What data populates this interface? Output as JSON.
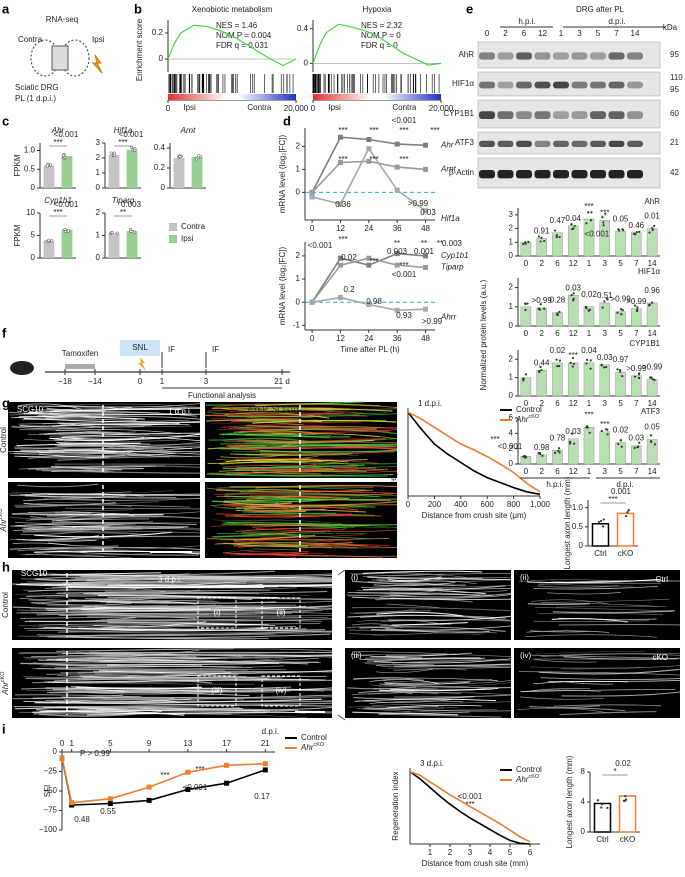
{
  "panel_labels": [
    "a",
    "b",
    "c",
    "d",
    "e",
    "f",
    "g",
    "h",
    "i"
  ],
  "a": {
    "title": "RNA-seq",
    "contra": "Contra",
    "ipsi": "Ipsi",
    "caption": [
      "Sciatic DRG",
      "PL (1 d.p.i.)"
    ]
  },
  "b": {
    "y_label": "Enrichment score"
  },
  "e": {
    "header": "DRG after PL",
    "hpi": "h.p.i.",
    "dpi": "d.p.i.",
    "lanes": [
      "0",
      "2",
      "6",
      "12",
      "1",
      "3",
      "5",
      "7",
      "14"
    ],
    "kda": "kDa",
    "rows": [
      {
        "name": "AhR",
        "mw": [
          "95"
        ]
      },
      {
        "name": "HIF1α",
        "mw": [
          "110",
          "95"
        ]
      },
      {
        "name": "CYP1B1",
        "mw": [
          "60"
        ]
      },
      {
        "name": "ATF3",
        "mw": [
          "21"
        ]
      },
      {
        "name": "β-Actin",
        "mw": [
          "42"
        ]
      }
    ],
    "y_label": "Normalized protein levels (a.u.)",
    "hpi_bottom": "h.p.i.",
    "dpi_bottom": "d.p.i."
  },
  "f": {
    "drug": "Tamoxifen",
    "surgery": "SNL",
    "if": [
      "IF",
      "IF"
    ],
    "ticks": [
      "−18",
      "−14",
      "0",
      "1",
      "3",
      "21 d"
    ],
    "functional": "Functional analysis"
  },
  "g": {
    "stain": "SCG10",
    "time": "1 d.p.i.",
    "rows": [
      "Control",
      {
        "gene": "Ahr",
        "sup": "cKO"
      }
    ],
    "merge": [
      "eYFP",
      "SCG10"
    ]
  },
  "h": {
    "stain": "SCG10",
    "time": "3 d.p.i.",
    "rows": [
      "Control",
      {
        "gene": "Ahr",
        "sup": "cKO"
      }
    ],
    "boxes": [
      "(i)",
      "(ii)",
      "(iii)",
      "(iv)"
    ],
    "zoom_labels": [
      "(i)",
      "(ii)",
      "(iii)",
      "(iv)"
    ],
    "zoom_tags": [
      "Ctrl",
      "cKO"
    ]
  },
  "chart_data": [
    {
      "type": "line",
      "title": "Xenobiotic metabolism",
      "stats": [
        "NES = 1.46",
        "NOM P = 0.004",
        "FDR q = 0.031"
      ],
      "x": [
        0,
        1000,
        2000,
        4000,
        6000,
        8000,
        10000,
        12000,
        14000,
        16000,
        18000,
        20000
      ],
      "xlim": [
        0,
        20000
      ],
      "xticks": [
        0,
        {
          "value": 20000,
          "label": "20,000"
        }
      ],
      "ylim": [
        -0.1,
        0.3
      ],
      "yticks": [
        0,
        0.2
      ],
      "barcode_labels": [
        "Ipsi",
        "Contra"
      ],
      "series": [
        {
          "color": "#3ddc3d",
          "values": [
            0,
            0.12,
            0.2,
            0.26,
            0.25,
            0.22,
            0.18,
            0.12,
            0.06,
            0,
            -0.05,
            0
          ]
        }
      ]
    },
    {
      "type": "line",
      "title": "Hypoxia",
      "stats": [
        "NES = 2.32",
        "NOM P = 0",
        "FDR q = 0"
      ],
      "x": [
        0,
        1000,
        2000,
        4000,
        6000,
        8000,
        10000,
        12000,
        14000,
        16000,
        18000,
        20000
      ],
      "xlim": [
        0,
        20000
      ],
      "xticks": [
        0,
        {
          "value": 20000,
          "label": "20,000"
        }
      ],
      "ylim": [
        -0.1,
        0.5
      ],
      "yticks": [
        0,
        0.4
      ],
      "barcode_labels": [
        "Ipsi",
        "Contra"
      ],
      "series": [
        {
          "color": "#3ddc3d",
          "values": [
            0,
            0.2,
            0.35,
            0.45,
            0.42,
            0.38,
            0.32,
            0.22,
            0.12,
            0.05,
            -0.02,
            0
          ]
        }
      ]
    },
    {
      "type": "bar",
      "title": "Ahr",
      "y_label": "FPKM",
      "ylim": [
        0,
        1.2
      ],
      "yticks": [
        0,
        0.5,
        {
          "value": 1,
          "label": "1.0"
        }
      ],
      "annotations": [
        "<0.001",
        "***"
      ],
      "series": [
        {
          "color": "#c4c4c4",
          "values": [
            0.6
          ]
        },
        {
          "color": "#98cf92",
          "values": [
            0.85
          ]
        }
      ]
    },
    {
      "type": "bar",
      "title": "Hif1a",
      "ylim": [
        0,
        3
      ],
      "yticks": [
        0,
        1,
        2,
        3
      ],
      "annotations": [
        "<0.001",
        "***"
      ],
      "series": [
        {
          "color": "#c4c4c4",
          "values": [
            2.2
          ]
        },
        {
          "color": "#98cf92",
          "values": [
            2.55
          ]
        }
      ]
    },
    {
      "type": "bar",
      "title": "Arnt",
      "ylim": [
        0,
        0.45
      ],
      "yticks": [
        0,
        0.2,
        0.4
      ],
      "series": [
        {
          "color": "#c4c4c4",
          "values": [
            0.3
          ]
        },
        {
          "color": "#98cf92",
          "values": [
            0.31
          ]
        }
      ]
    },
    {
      "type": "bar",
      "title": "Cyp1b1",
      "y_label": "FPKM",
      "ylim": [
        0,
        10
      ],
      "yticks": [
        0,
        5,
        10
      ],
      "annotations": [
        "<0.001",
        "***"
      ],
      "series": [
        {
          "color": "#c4c4c4",
          "values": [
            3.7
          ]
        },
        {
          "color": "#98cf92",
          "values": [
            6.3
          ]
        }
      ]
    },
    {
      "type": "bar",
      "title": "Tiparp",
      "ylim": [
        0,
        2
      ],
      "yticks": [
        0,
        1,
        2
      ],
      "annotations": [
        "0.003",
        "**"
      ],
      "series": [
        {
          "name": "Contra",
          "color": "#c4c4c4",
          "values": [
            1.1
          ]
        },
        {
          "name": "Ipsi",
          "color": "#98cf92",
          "values": [
            1.2
          ]
        }
      ]
    },
    {
      "type": "line",
      "y_label": "mRNA level (log₂[FC])",
      "x": [
        0,
        12,
        24,
        36,
        48
      ],
      "xlim": [
        -3,
        52
      ],
      "xticks": [
        0,
        12,
        24,
        36,
        48
      ],
      "ylim": [
        -1.2,
        2.8
      ],
      "yticks": [
        0,
        1,
        2
      ],
      "reference_line": 0,
      "annotations": [
        "***",
        "***",
        "<0.001",
        "***",
        "***",
        "***",
        "***",
        "***",
        "0.36",
        ">0.99",
        "0.03"
      ],
      "series": [
        {
          "name": "Ahr",
          "color": "#7f7f7f",
          "values": [
            0,
            2.4,
            2.3,
            2.1,
            2.05
          ]
        },
        {
          "name": "Arnt",
          "color": "#9a9a9a",
          "values": [
            0,
            1.3,
            1.35,
            1.1,
            1
          ]
        },
        {
          "name": "Hif1a",
          "color": "#a8a8a8",
          "values": [
            -0.2,
            -0.5,
            1.9,
            0.1,
            -0.8
          ]
        }
      ]
    },
    {
      "type": "line",
      "y_label": "mRNA level (log₂[FC])",
      "x_label": "Time after PL (h)",
      "x": [
        0,
        12,
        24,
        36,
        48
      ],
      "xlim": [
        -3,
        52
      ],
      "xticks": [
        0,
        12,
        24,
        36,
        48
      ],
      "ylim": [
        -1.2,
        2.6
      ],
      "yticks": [
        -1,
        0,
        1,
        2
      ],
      "reference_line": 0,
      "annotations": [
        "<0.001",
        "***",
        "0.02",
        "0.2",
        "***",
        "0.98",
        "**",
        "0.003",
        "***",
        "<0.001",
        "**",
        "0.001",
        "0.93",
        "**",
        "0.003",
        ">0.99"
      ],
      "series": [
        {
          "name": "Cyp1b1",
          "color": "#7f7f7f",
          "values": [
            0,
            1.9,
            1.6,
            2.1,
            2
          ]
        },
        {
          "name": "Tiparp",
          "color": "#9a9a9a",
          "values": [
            0,
            1.6,
            1.9,
            1.6,
            1.5
          ]
        },
        {
          "name": "Ahrr",
          "color": "#a8a8a8",
          "values": [
            0,
            0.2,
            -0.1,
            -0.35,
            -0.3
          ]
        }
      ]
    },
    {
      "type": "bar",
      "title": "AhR",
      "categories": [
        "0",
        "2",
        "6",
        "12",
        "1",
        "3",
        "5",
        "7",
        "14"
      ],
      "ylim": [
        0,
        3.5
      ],
      "yticks": [
        0,
        1,
        2,
        3
      ],
      "annotations": [
        "0.91",
        "0.47",
        "0.04",
        "***",
        "***",
        "0.05",
        "0.46",
        "0.01"
      ],
      "note": "<0.001",
      "series": [
        {
          "color": "#b9deb3",
          "values": [
            1,
            1.3,
            1.7,
            2.2,
            2.7,
            2.6,
            1.8,
            1.7,
            2
          ]
        }
      ]
    },
    {
      "type": "bar",
      "title": "HIF1α",
      "categories": [
        "0",
        "2",
        "6",
        "12",
        "1",
        "3",
        "5",
        "7",
        "14"
      ],
      "ylim": [
        0,
        2.5
      ],
      "yticks": [
        0,
        1,
        2
      ],
      "annotations": [
        ">0.99",
        "0.28",
        "0.03",
        "0.02",
        "0.51",
        ">0.99",
        ">0.99",
        "0.96"
      ],
      "series": [
        {
          "color": "#b9deb3",
          "values": [
            1,
            0.95,
            0.7,
            1.6,
            1,
            1.2,
            0.75,
            0.9,
            1.2
          ]
        }
      ]
    },
    {
      "type": "bar",
      "title": "CYP1B1",
      "categories": [
        "0",
        "2",
        "6",
        "12",
        "1",
        "3",
        "5",
        "7",
        "14"
      ],
      "ylim": [
        0,
        2.5
      ],
      "yticks": [
        0,
        1,
        2
      ],
      "annotations": [
        "0.44",
        "0.02",
        "***",
        "0.04",
        "0.03",
        "0.97",
        ">0.99",
        ">0.99"
      ],
      "series": [
        {
          "color": "#b9deb3",
          "values": [
            1,
            1.4,
            1.8,
            1.8,
            1.8,
            1.7,
            1.3,
            1.1,
            0.9
          ]
        }
      ]
    },
    {
      "type": "bar",
      "title": "ATF3",
      "categories": [
        "0",
        "2",
        "6",
        "12",
        "1",
        "3",
        "5",
        "7",
        "14"
      ],
      "ylim": [
        0,
        6
      ],
      "yticks": [
        0,
        2,
        4,
        6
      ],
      "annotations": [
        "0.98",
        "0.78",
        "0.03",
        "***",
        "***",
        "0.02",
        "0.03",
        "0.05"
      ],
      "series": [
        {
          "color": "#b9deb3",
          "values": [
            1,
            1.2,
            1.8,
            3.3,
            4.8,
            4.2,
            2.8,
            2.4,
            3.2
          ]
        }
      ]
    },
    {
      "type": "line",
      "title": "1 d.p.i.",
      "y_label": "Regeneration index",
      "x_label": "Distance from crush site (μm)",
      "x": [
        0,
        100,
        200,
        300,
        400,
        500,
        600,
        700,
        800,
        900,
        1000
      ],
      "xlim": [
        0,
        1000
      ],
      "xticks": [
        0,
        200,
        400,
        600,
        800,
        {
          "value": 1000,
          "label": "1,000"
        }
      ],
      "ylim": [
        0,
        1.05
      ],
      "annotations": [
        "***",
        "<0.001"
      ],
      "series": [
        {
          "name": "Control",
          "color": "#000000",
          "values": [
            1,
            0.8,
            0.62,
            0.5,
            0.4,
            0.3,
            0.22,
            0.16,
            0.1,
            0.05,
            0.02
          ]
        },
        {
          "name": "Ahr",
          "sup": "cKO",
          "color": "#f07d2b",
          "values": [
            1,
            0.92,
            0.82,
            0.72,
            0.62,
            0.55,
            0.47,
            0.38,
            0.28,
            0.15,
            0.05
          ]
        }
      ]
    },
    {
      "type": "bar",
      "y_label": "Longest axon length (mm)",
      "categories": [
        "Ctrl",
        "cKO"
      ],
      "ylim": [
        0,
        1.2
      ],
      "yticks": [
        0,
        0.5,
        {
          "value": 1,
          "label": "1.0"
        }
      ],
      "annotations": [
        "0.001",
        "***"
      ],
      "series": [
        {
          "colors": [
            "#000000",
            "#f07d2b"
          ],
          "values": [
            0.58,
            0.85
          ]
        }
      ]
    },
    {
      "type": "line",
      "y_label": "SFI",
      "x_axis": "top",
      "x_label": "d.p.i.",
      "x": [
        0,
        1,
        5,
        9,
        13,
        17,
        21
      ],
      "xlim": [
        0,
        22
      ],
      "xticks": [
        0,
        1,
        5,
        9,
        13,
        17,
        21
      ],
      "ylim": [
        -100,
        0
      ],
      "yticks": [
        0,
        {
          "value": -25,
          "label": "−25"
        },
        {
          "value": -50,
          "label": "−50"
        },
        {
          "value": -75,
          "label": "−75"
        },
        {
          "value": -100,
          "label": "−100"
        }
      ],
      "annotations": [
        "P > 0.99",
        "0.48",
        "0.55",
        "***",
        "<0.001",
        "***",
        "0.17"
      ],
      "series": [
        {
          "name": "Control",
          "color": "#000000",
          "values": [
            -8,
            -68,
            -66,
            -62,
            -48,
            -40,
            -23
          ]
        },
        {
          "name": "Ahr",
          "sup": "cKO",
          "color": "#f07d2b",
          "values": [
            -8,
            -65,
            -60,
            -45,
            -26,
            -17,
            -15
          ]
        }
      ]
    },
    {
      "type": "line",
      "title": "3 d.p.i.",
      "y_label": "Regeneration index",
      "x_label": "Distance from crush site (mm)",
      "x": [
        0,
        0.5,
        1,
        1.5,
        2,
        2.5,
        3,
        3.5,
        4,
        4.5,
        5,
        5.5,
        6
      ],
      "xlim": [
        0,
        6.5
      ],
      "xticks": [
        1,
        2,
        3,
        4,
        5,
        6
      ],
      "ylim": [
        0,
        1.05
      ],
      "annotations": [
        "<0.001",
        "***"
      ],
      "series": [
        {
          "name": "Control",
          "color": "#000000",
          "values": [
            1,
            0.9,
            0.78,
            0.66,
            0.55,
            0.45,
            0.36,
            0.28,
            0.2,
            0.12,
            0.05,
            0.01,
            0
          ]
        },
        {
          "name": "Ahr",
          "sup": "cKO",
          "color": "#f07d2b",
          "values": [
            1,
            0.95,
            0.86,
            0.77,
            0.68,
            0.6,
            0.52,
            0.44,
            0.36,
            0.28,
            0.19,
            0.1,
            0.03
          ]
        }
      ]
    },
    {
      "type": "bar",
      "y_label": "Longest axon length (mm)",
      "categories": [
        "Ctrl",
        "cKO"
      ],
      "ylim": [
        0,
        8
      ],
      "yticks": [
        0,
        4,
        8
      ],
      "annotations": [
        "0.02",
        "*"
      ],
      "series": [
        {
          "colors": [
            "#000000",
            "#f07d2b"
          ],
          "values": [
            3.8,
            4.8
          ]
        }
      ]
    }
  ]
}
